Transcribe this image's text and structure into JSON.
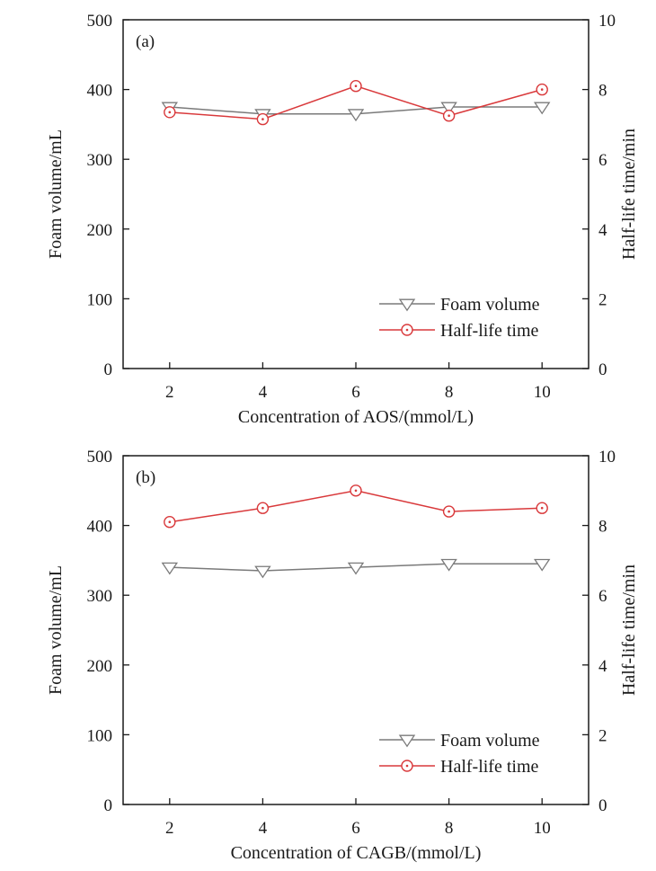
{
  "chart_data": [
    {
      "type": "line",
      "panel_label": "(a)",
      "xlabel": "Concentration of AOS/(mmol/L)",
      "ylabel_left": "Foam volume/mL",
      "ylabel_right": "Half-life time/min",
      "x": [
        2,
        4,
        6,
        8,
        10
      ],
      "xticks": [
        2,
        4,
        6,
        8,
        10
      ],
      "xlim": [
        1,
        11
      ],
      "ylim_left": [
        0,
        500
      ],
      "yticks_left": [
        0,
        100,
        200,
        300,
        400,
        500
      ],
      "ylim_right": [
        0,
        10
      ],
      "yticks_right": [
        0,
        2,
        4,
        6,
        8,
        10
      ],
      "grid": false,
      "legend_position": "bottom-right",
      "series": [
        {
          "name": "Foam volume",
          "axis": "left",
          "marker": "triangle-down",
          "color": "#7a7a7a",
          "values": [
            375,
            365,
            365,
            375,
            375
          ]
        },
        {
          "name": "Half-life time",
          "axis": "right",
          "marker": "circle-dot",
          "color": "#d9393b",
          "values": [
            7.35,
            7.15,
            8.1,
            7.25,
            8.0
          ]
        }
      ]
    },
    {
      "type": "line",
      "panel_label": "(b)",
      "xlabel": "Concentration of CAGB/(mmol/L)",
      "ylabel_left": "Foam volume/mL",
      "ylabel_right": "Half-life time/min",
      "x": [
        2,
        4,
        6,
        8,
        10
      ],
      "xticks": [
        2,
        4,
        6,
        8,
        10
      ],
      "xlim": [
        1,
        11
      ],
      "ylim_left": [
        0,
        500
      ],
      "yticks_left": [
        0,
        100,
        200,
        300,
        400,
        500
      ],
      "ylim_right": [
        0,
        10
      ],
      "yticks_right": [
        0,
        2,
        4,
        6,
        8,
        10
      ],
      "grid": false,
      "legend_position": "bottom-right",
      "series": [
        {
          "name": "Foam volume",
          "axis": "left",
          "marker": "triangle-down",
          "color": "#7a7a7a",
          "values": [
            340,
            335,
            340,
            345,
            345
          ]
        },
        {
          "name": "Half-life time",
          "axis": "right",
          "marker": "circle-dot",
          "color": "#d9393b",
          "values": [
            8.1,
            8.5,
            9.0,
            8.4,
            8.5
          ]
        }
      ]
    }
  ]
}
